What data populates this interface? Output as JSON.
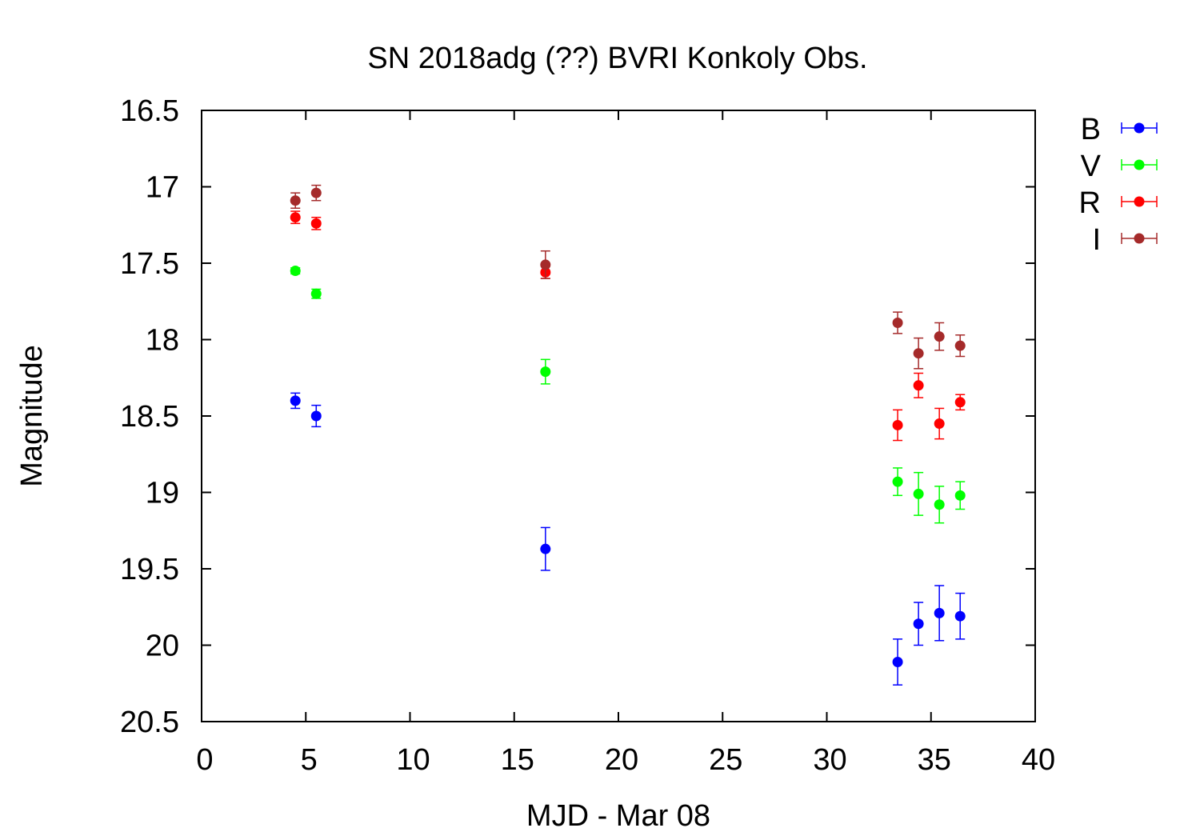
{
  "chart_data": {
    "type": "scatter",
    "title": "SN 2018adg (??) BVRI Konkoly Obs.",
    "xlabel": "MJD - Mar 08",
    "ylabel": "Magnitude",
    "xlim": [
      0,
      40
    ],
    "ylim": [
      16.5,
      20.5
    ],
    "y_inverted": true,
    "grid": false,
    "legend_position": "outside-right-top",
    "x_ticks": [
      "0",
      "5",
      "10",
      "15",
      "20",
      "25",
      "30",
      "35",
      "40"
    ],
    "y_ticks": [
      "16.5",
      "17",
      "17.5",
      "18",
      "18.5",
      "19",
      "19.5",
      "20",
      "20.5"
    ],
    "series": [
      {
        "name": "B",
        "color": "#0000ff",
        "points": [
          {
            "x": 4.5,
            "y": 18.4,
            "err": 0.05
          },
          {
            "x": 5.5,
            "y": 18.5,
            "err": 0.07
          },
          {
            "x": 16.5,
            "y": 19.37,
            "err": 0.14
          },
          {
            "x": 33.4,
            "y": 20.11,
            "err": 0.15
          },
          {
            "x": 34.4,
            "y": 19.86,
            "err": 0.14
          },
          {
            "x": 35.4,
            "y": 19.79,
            "err": 0.18
          },
          {
            "x": 36.4,
            "y": 19.81,
            "err": 0.15
          }
        ]
      },
      {
        "name": "V",
        "color": "#00ff00",
        "points": [
          {
            "x": 4.5,
            "y": 17.55,
            "err": 0.02
          },
          {
            "x": 5.5,
            "y": 17.7,
            "err": 0.03
          },
          {
            "x": 16.5,
            "y": 18.21,
            "err": 0.08
          },
          {
            "x": 33.4,
            "y": 18.93,
            "err": 0.09
          },
          {
            "x": 34.4,
            "y": 19.01,
            "err": 0.14
          },
          {
            "x": 35.4,
            "y": 19.08,
            "err": 0.12
          },
          {
            "x": 36.4,
            "y": 19.02,
            "err": 0.09
          }
        ]
      },
      {
        "name": "R",
        "color": "#ff0000",
        "points": [
          {
            "x": 4.5,
            "y": 17.2,
            "err": 0.04
          },
          {
            "x": 5.5,
            "y": 17.24,
            "err": 0.04
          },
          {
            "x": 16.5,
            "y": 17.56,
            "err": 0.04
          },
          {
            "x": 33.4,
            "y": 18.56,
            "err": 0.1
          },
          {
            "x": 34.4,
            "y": 18.3,
            "err": 0.08
          },
          {
            "x": 35.4,
            "y": 18.55,
            "err": 0.1
          },
          {
            "x": 36.4,
            "y": 18.41,
            "err": 0.05
          }
        ]
      },
      {
        "name": "I",
        "color": "#a52a2a",
        "points": [
          {
            "x": 4.5,
            "y": 17.09,
            "err": 0.05
          },
          {
            "x": 5.5,
            "y": 17.04,
            "err": 0.05
          },
          {
            "x": 16.5,
            "y": 17.51,
            "err": 0.09
          },
          {
            "x": 33.4,
            "y": 17.89,
            "err": 0.07
          },
          {
            "x": 34.4,
            "y": 18.09,
            "err": 0.1
          },
          {
            "x": 35.4,
            "y": 17.98,
            "err": 0.09
          },
          {
            "x": 36.4,
            "y": 18.04,
            "err": 0.07
          }
        ]
      }
    ]
  }
}
